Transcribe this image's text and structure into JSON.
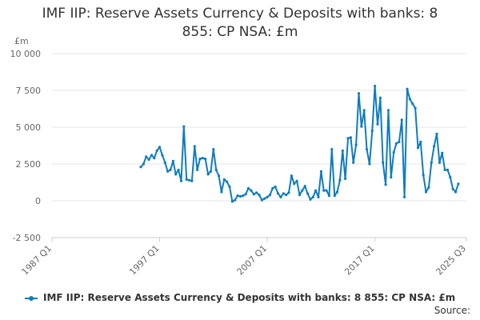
{
  "title_line1": "IMF IIP: Reserve Assets Currency & Deposits with banks: 8",
  "title_line2": "855: CP NSA: £m",
  "source_label": "Source:",
  "chart_data": {
    "type": "line",
    "title": "IMF IIP: Reserve Assets Currency & Deposits with banks: 8 855: CP NSA: £m",
    "ylabel": "£m",
    "ylim": [
      -2500,
      10000
    ],
    "yticks": [
      -2500,
      0,
      2500,
      5000,
      7500,
      10000
    ],
    "ytick_labels": [
      "-2 500",
      "0",
      "2 500",
      "5 000",
      "7 500",
      "10 000"
    ],
    "xtick_labels": [
      "1987 Q1",
      "1997 Q1",
      "2007 Q1",
      "2017 Q1",
      "2025 Q3"
    ],
    "grid": true,
    "legend_position": "bottom",
    "series_color": "#0f7cbf",
    "series": [
      {
        "name": "IMF IIP: Reserve Assets Currency & Deposits with banks: 8 855: CP NSA: £m",
        "start": "1995 Q2",
        "values": [
          2300,
          2500,
          3000,
          2800,
          3100,
          2900,
          3400,
          3650,
          3100,
          2600,
          2000,
          2100,
          2700,
          1800,
          2100,
          1350,
          5050,
          1450,
          1400,
          1350,
          3700,
          2100,
          2850,
          2900,
          2850,
          1800,
          2000,
          3500,
          2100,
          1700,
          600,
          1450,
          1300,
          950,
          -50,
          50,
          350,
          300,
          350,
          450,
          850,
          700,
          450,
          550,
          400,
          50,
          150,
          250,
          400,
          850,
          950,
          500,
          250,
          500,
          400,
          550,
          1700,
          1150,
          1350,
          400,
          700,
          1000,
          500,
          100,
          250,
          700,
          250,
          2000,
          700,
          700,
          350,
          3500,
          350,
          600,
          1400,
          3400,
          1500,
          4250,
          4300,
          2600,
          3800,
          7300,
          5050,
          6150,
          3500,
          2500,
          4750,
          7800,
          5200,
          7000,
          2600,
          1100,
          6150,
          1600,
          3300,
          3900,
          4000,
          5500,
          250,
          7600,
          6900,
          6600,
          6300,
          3600,
          4000,
          1750,
          600,
          900,
          2600,
          3700,
          4550,
          2600,
          3250,
          2100,
          2100,
          1600,
          800,
          600,
          1150
        ]
      }
    ]
  }
}
